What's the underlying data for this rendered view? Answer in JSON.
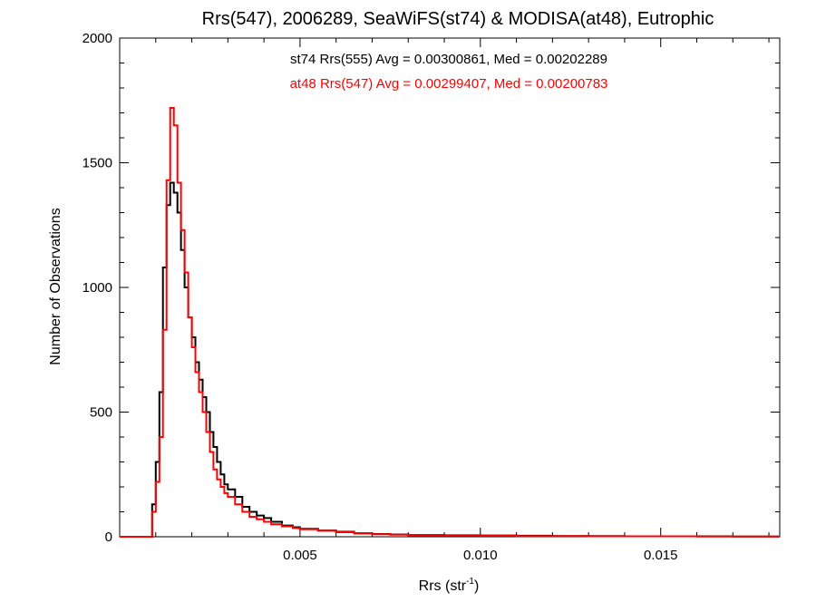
{
  "chart_data": {
    "type": "line",
    "title": "Rrs(547), 2006289, SeaWiFS(st74) & MODISA(at48), Eutrophic",
    "xlabel": "Rrs (str",
    "xlabel_sup": "-1",
    "xlabel_suffix": ")",
    "ylabel": "Number of Observations",
    "xlim": [
      0.0,
      0.0183
    ],
    "ylim": [
      0,
      2000
    ],
    "grid": false,
    "legend_placement": "top-center",
    "x_ticks": [
      {
        "value": 0.005,
        "label": "0.005"
      },
      {
        "value": 0.01,
        "label": "0.010"
      },
      {
        "value": 0.015,
        "label": "0.015"
      }
    ],
    "y_ticks": [
      {
        "value": 0,
        "label": "0"
      },
      {
        "value": 500,
        "label": "500"
      },
      {
        "value": 1000,
        "label": "1000"
      },
      {
        "value": 1500,
        "label": "1500"
      },
      {
        "value": 2000,
        "label": "2000"
      }
    ],
    "series": [
      {
        "name": "st74 Rrs(555) Avg = 0.00300861, Med = 0.00202289",
        "color": "#000000",
        "x": [
          0.0,
          0.0008,
          0.0009,
          0.001,
          0.0011,
          0.0012,
          0.0013,
          0.0014,
          0.0015,
          0.0016,
          0.0017,
          0.0018,
          0.0019,
          0.002,
          0.0021,
          0.0022,
          0.0023,
          0.0024,
          0.0025,
          0.0026,
          0.0027,
          0.0028,
          0.0029,
          0.003,
          0.0032,
          0.0034,
          0.0036,
          0.0038,
          0.004,
          0.0042,
          0.0045,
          0.0048,
          0.005,
          0.0055,
          0.006,
          0.0065,
          0.007,
          0.0075,
          0.008,
          0.009,
          0.01,
          0.011,
          0.012,
          0.013,
          0.014,
          0.015,
          0.016,
          0.017,
          0.0183
        ],
        "y": [
          0,
          0,
          130,
          300,
          580,
          1080,
          1330,
          1420,
          1380,
          1300,
          1150,
          1000,
          880,
          800,
          700,
          630,
          560,
          500,
          420,
          360,
          300,
          250,
          210,
          190,
          160,
          120,
          100,
          85,
          75,
          60,
          45,
          38,
          32,
          25,
          20,
          14,
          11,
          9,
          7,
          6,
          5,
          4,
          3,
          3,
          2,
          2,
          2,
          1,
          1
        ]
      },
      {
        "name": "at48 Rrs(547) Avg = 0.00299407, Med = 0.00200783",
        "color": "#ff0000",
        "x": [
          0.0,
          0.0008,
          0.0009,
          0.001,
          0.0011,
          0.0012,
          0.0013,
          0.0014,
          0.0015,
          0.0016,
          0.0017,
          0.0018,
          0.0019,
          0.002,
          0.0021,
          0.0022,
          0.0023,
          0.0024,
          0.0025,
          0.0026,
          0.0027,
          0.0028,
          0.0029,
          0.003,
          0.0032,
          0.0034,
          0.0036,
          0.0038,
          0.004,
          0.0042,
          0.0045,
          0.0048,
          0.005,
          0.0055,
          0.006,
          0.0065,
          0.007,
          0.0075,
          0.008,
          0.009,
          0.01,
          0.011,
          0.012,
          0.013,
          0.014,
          0.015,
          0.016,
          0.017,
          0.0183
        ],
        "y": [
          0,
          0,
          100,
          220,
          400,
          830,
          1430,
          1720,
          1650,
          1420,
          1230,
          1060,
          880,
          760,
          660,
          580,
          500,
          420,
          340,
          270,
          230,
          200,
          175,
          160,
          130,
          100,
          80,
          70,
          60,
          50,
          42,
          35,
          30,
          24,
          18,
          13,
          10,
          8,
          6,
          5,
          4,
          3,
          3,
          2,
          2,
          2,
          1,
          1,
          1
        ]
      }
    ]
  }
}
